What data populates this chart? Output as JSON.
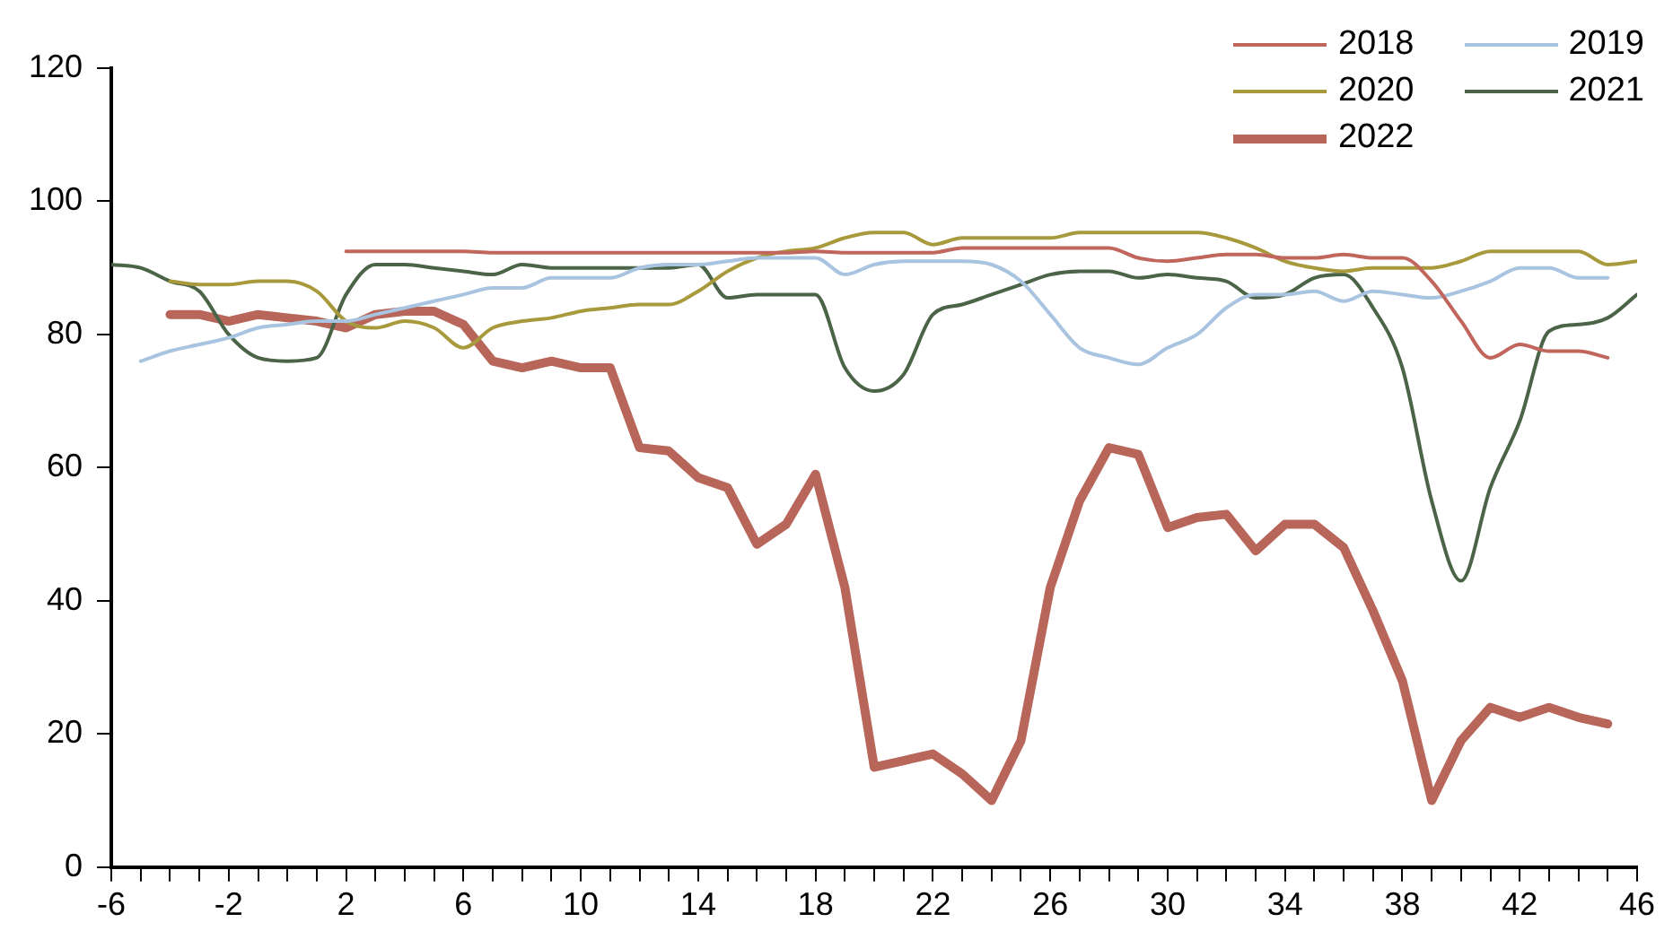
{
  "chart_data": {
    "type": "line",
    "x": [
      -6,
      -5,
      -4,
      -3,
      -2,
      -1,
      0,
      1,
      2,
      3,
      4,
      5,
      6,
      7,
      8,
      9,
      10,
      11,
      12,
      13,
      14,
      15,
      16,
      17,
      18,
      19,
      20,
      21,
      22,
      23,
      24,
      25,
      26,
      27,
      28,
      29,
      30,
      31,
      32,
      33,
      34,
      35,
      36,
      37,
      38,
      39,
      40,
      41,
      42,
      43,
      44,
      45,
      46
    ],
    "series": [
      {
        "name": "2018",
        "color": "#c0665c",
        "values": [
          null,
          null,
          null,
          null,
          null,
          null,
          null,
          null,
          92.5,
          92.5,
          92.5,
          92.5,
          92.5,
          92.3,
          92.3,
          92.3,
          92.3,
          92.3,
          92.3,
          92.3,
          92.3,
          92.3,
          92.3,
          92.3,
          92.5,
          92.3,
          92.3,
          92.3,
          92.3,
          93,
          93,
          93,
          93,
          93,
          93,
          91.5,
          91,
          91.5,
          92,
          92,
          91.5,
          91.5,
          92,
          91.5,
          91.5,
          88,
          82,
          76.5,
          78.5,
          77.5,
          77.5,
          76.5,
          null
        ]
      },
      {
        "name": "2019",
        "color": "#a9c4e0",
        "values": [
          null,
          76,
          77.5,
          78.5,
          79.5,
          81,
          81.5,
          82,
          82,
          83,
          84,
          85,
          86,
          87,
          87,
          88.5,
          88.5,
          88.5,
          90,
          90.5,
          90.5,
          91,
          91.5,
          91.5,
          91.5,
          89,
          90.5,
          91,
          91,
          91,
          90.5,
          88,
          83,
          78,
          76.5,
          75.5,
          78,
          80,
          84,
          86,
          86,
          86.5,
          85,
          86.5,
          86,
          85.5,
          86.5,
          88,
          90,
          90,
          88.5,
          88.5,
          null
        ]
      },
      {
        "name": "2020",
        "color": "#a89a3c",
        "values": [
          null,
          null,
          88,
          87.5,
          87.5,
          88,
          88,
          86.5,
          82,
          81,
          82,
          81,
          78,
          81,
          82,
          82.5,
          83.5,
          84,
          84.5,
          84.5,
          86.5,
          89.5,
          91.5,
          92.5,
          93,
          94.5,
          95.3,
          95.3,
          93.5,
          94.5,
          94.5,
          94.5,
          94.5,
          95.3,
          95.3,
          95.3,
          95.3,
          95.3,
          94.5,
          93,
          91,
          90,
          89.5,
          90,
          90,
          90,
          91,
          92.5,
          92.5,
          92.5,
          92.5,
          90.5,
          91
        ]
      },
      {
        "name": "2021",
        "color": "#4b6347",
        "values": [
          90.5,
          90,
          88,
          86.5,
          80,
          76.5,
          76,
          76.5,
          86,
          90.5,
          90.5,
          90,
          89.5,
          89,
          90.5,
          90,
          90,
          90,
          90,
          90,
          90.5,
          85.5,
          86,
          86,
          86,
          75,
          71.5,
          74,
          83,
          84.5,
          86,
          87.5,
          89,
          89.5,
          89.5,
          88.5,
          89,
          88.5,
          88,
          85.5,
          86,
          88.5,
          89,
          84,
          75,
          55,
          43,
          57,
          67,
          80.5,
          81.5,
          82.5,
          86
        ]
      },
      {
        "name": "2022",
        "color": "#b8655a",
        "values": [
          null,
          null,
          83,
          83,
          82,
          83,
          82.5,
          82,
          81,
          83,
          83.5,
          83.5,
          81.5,
          76,
          75,
          76,
          75,
          75,
          63,
          62.5,
          58.5,
          57,
          48.5,
          51.5,
          59,
          42,
          15,
          16,
          17,
          14,
          10,
          19,
          42,
          55,
          63,
          62,
          51,
          52.5,
          53,
          47.5,
          51.5,
          51.5,
          48,
          38.5,
          28,
          10,
          19,
          24,
          22.5,
          24,
          22.5,
          21.5,
          null
        ]
      }
    ],
    "xlim": [
      -6,
      46
    ],
    "xticks": [
      -6,
      {
        "value": -5,
        "label": null
      },
      {
        "value": -4,
        "label": null
      },
      {
        "value": -3,
        "label": null
      },
      -2,
      {
        "value": -1,
        "label": null
      },
      {
        "value": 0,
        "label": null
      },
      {
        "value": 1,
        "label": null
      },
      2,
      {
        "value": 3,
        "label": null
      },
      {
        "value": 4,
        "label": null
      },
      {
        "value": 5,
        "label": null
      },
      6,
      {
        "value": 7,
        "label": null
      },
      {
        "value": 8,
        "label": null
      },
      {
        "value": 9,
        "label": null
      },
      10,
      {
        "value": 11,
        "label": null
      },
      {
        "value": 12,
        "label": null
      },
      {
        "value": 13,
        "label": null
      },
      14,
      {
        "value": 15,
        "label": null
      },
      {
        "value": 16,
        "label": null
      },
      {
        "value": 17,
        "label": null
      },
      18,
      {
        "value": 19,
        "label": null
      },
      {
        "value": 20,
        "label": null
      },
      {
        "value": 21,
        "label": null
      },
      22,
      {
        "value": 23,
        "label": null
      },
      {
        "value": 24,
        "label": null
      },
      {
        "value": 25,
        "label": null
      },
      26,
      {
        "value": 27,
        "label": null
      },
      {
        "value": 28,
        "label": null
      },
      {
        "value": 29,
        "label": null
      },
      30,
      {
        "value": 31,
        "label": null
      },
      {
        "value": 32,
        "label": null
      },
      {
        "value": 33,
        "label": null
      },
      34,
      {
        "value": 35,
        "label": null
      },
      {
        "value": 36,
        "label": null
      },
      {
        "value": 37,
        "label": null
      },
      38,
      {
        "value": 39,
        "label": null
      },
      {
        "value": 40,
        "label": null
      },
      {
        "value": 41,
        "label": null
      },
      42,
      {
        "value": 43,
        "label": null
      },
      {
        "value": 44,
        "label": null
      },
      {
        "value": 45,
        "label": null
      },
      46
    ],
    "ylim": [
      0,
      120
    ],
    "yticks": [
      0,
      20,
      40,
      60,
      80,
      100,
      120
    ],
    "legend": "top right",
    "marker": "none",
    "line_style": "solid"
  }
}
